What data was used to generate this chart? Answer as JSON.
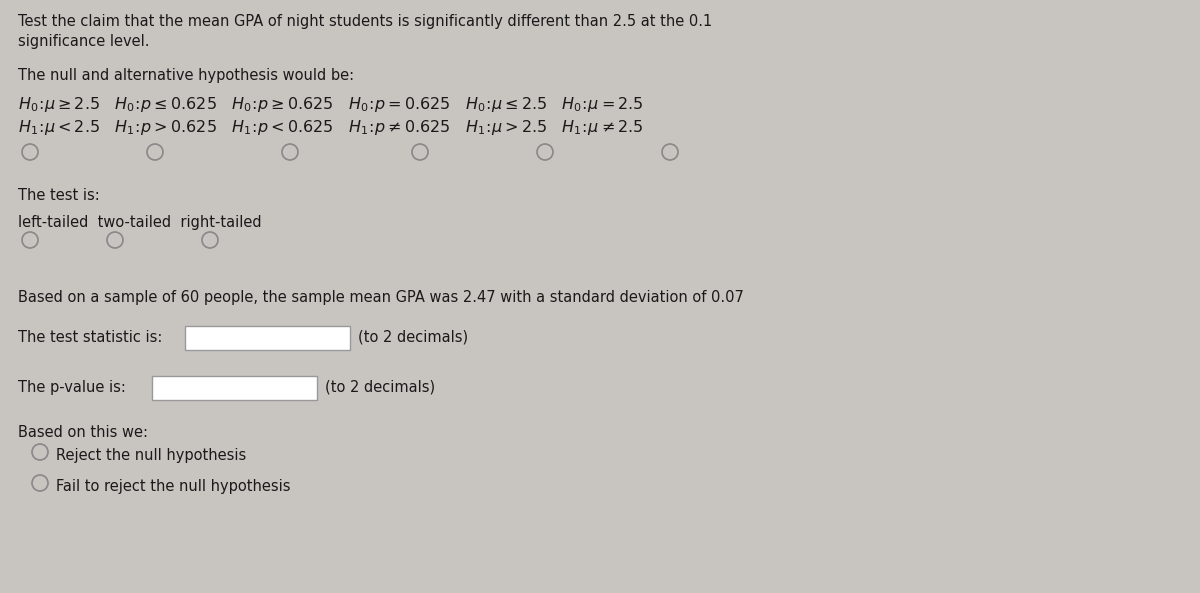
{
  "bg_color": "#c8c4c0",
  "panel_color": "#e8e4e0",
  "text_color": "#1a1a1a",
  "radio_circle_color": "#888888",
  "box_color": "#ffffff",
  "box_edge_color": "#999999",
  "font_size_body": 10.5,
  "font_size_math": 11.5,
  "font_size_small": 10.0,
  "line1": "Test the claim that the mean GPA of night students is significantly different than 2.5 at the 0.1",
  "line2": "significance level.",
  "hyp_label": "The null and alternative hypothesis would be:",
  "test_label": "The test is:",
  "tail_options": "left-tailed  two-tailed  right-tailed",
  "sample_text": "Based on a sample of 60 people, the sample mean GPA was 2.47 with a standard deviation of 0.07",
  "stat_label": "The test statistic is:",
  "pval_label": "The p-value is:",
  "decimals": "(to 2 decimals)",
  "based_label": "Based on this we:",
  "reject_label": "Reject the null hypothesis",
  "fail_label": "Fail to reject the null hypothesis"
}
